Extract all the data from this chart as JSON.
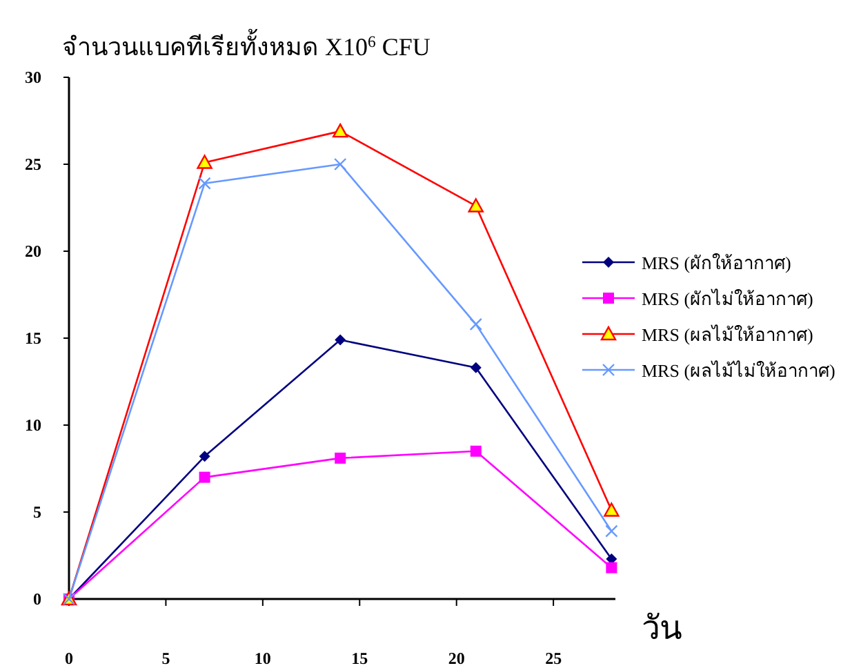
{
  "chart_data": {
    "type": "line",
    "ylabel": "จำนวนแบคทีเรียทั้งหมด X10$^{6}$ CFU",
    "xlabel": "วัน",
    "x": [
      0,
      7,
      14,
      21,
      28
    ],
    "xlim": [
      0,
      28.2
    ],
    "xticks": [
      0,
      5,
      10,
      15,
      20,
      25
    ],
    "ylim": [
      0,
      30
    ],
    "yticks": [
      0,
      5,
      10,
      15,
      20,
      25,
      30
    ],
    "grid": false,
    "legend": "right",
    "series": [
      {
        "name": "MRS (ผักให้อากาศ)",
        "color": "#000080",
        "marker": "diamond",
        "values": [
          0,
          8.2,
          14.9,
          13.3,
          2.3
        ]
      },
      {
        "name": "MRS (ผักไม่ให้อากาศ)",
        "color": "#ff00ff",
        "marker": "square",
        "values": [
          0,
          7.0,
          8.1,
          8.5,
          1.8
        ]
      },
      {
        "name": "MRS (ผลไม้ให้อากาศ)",
        "color": "#ff0000",
        "marker": "triangle",
        "values": [
          0,
          25.1,
          26.9,
          22.6,
          5.1
        ]
      },
      {
        "name": "MRS (ผลไม้ไม่ให้อากาศ)",
        "color": "#6699ff",
        "marker": "cross",
        "values": [
          0,
          23.9,
          25.0,
          15.8,
          3.9
        ]
      }
    ]
  }
}
